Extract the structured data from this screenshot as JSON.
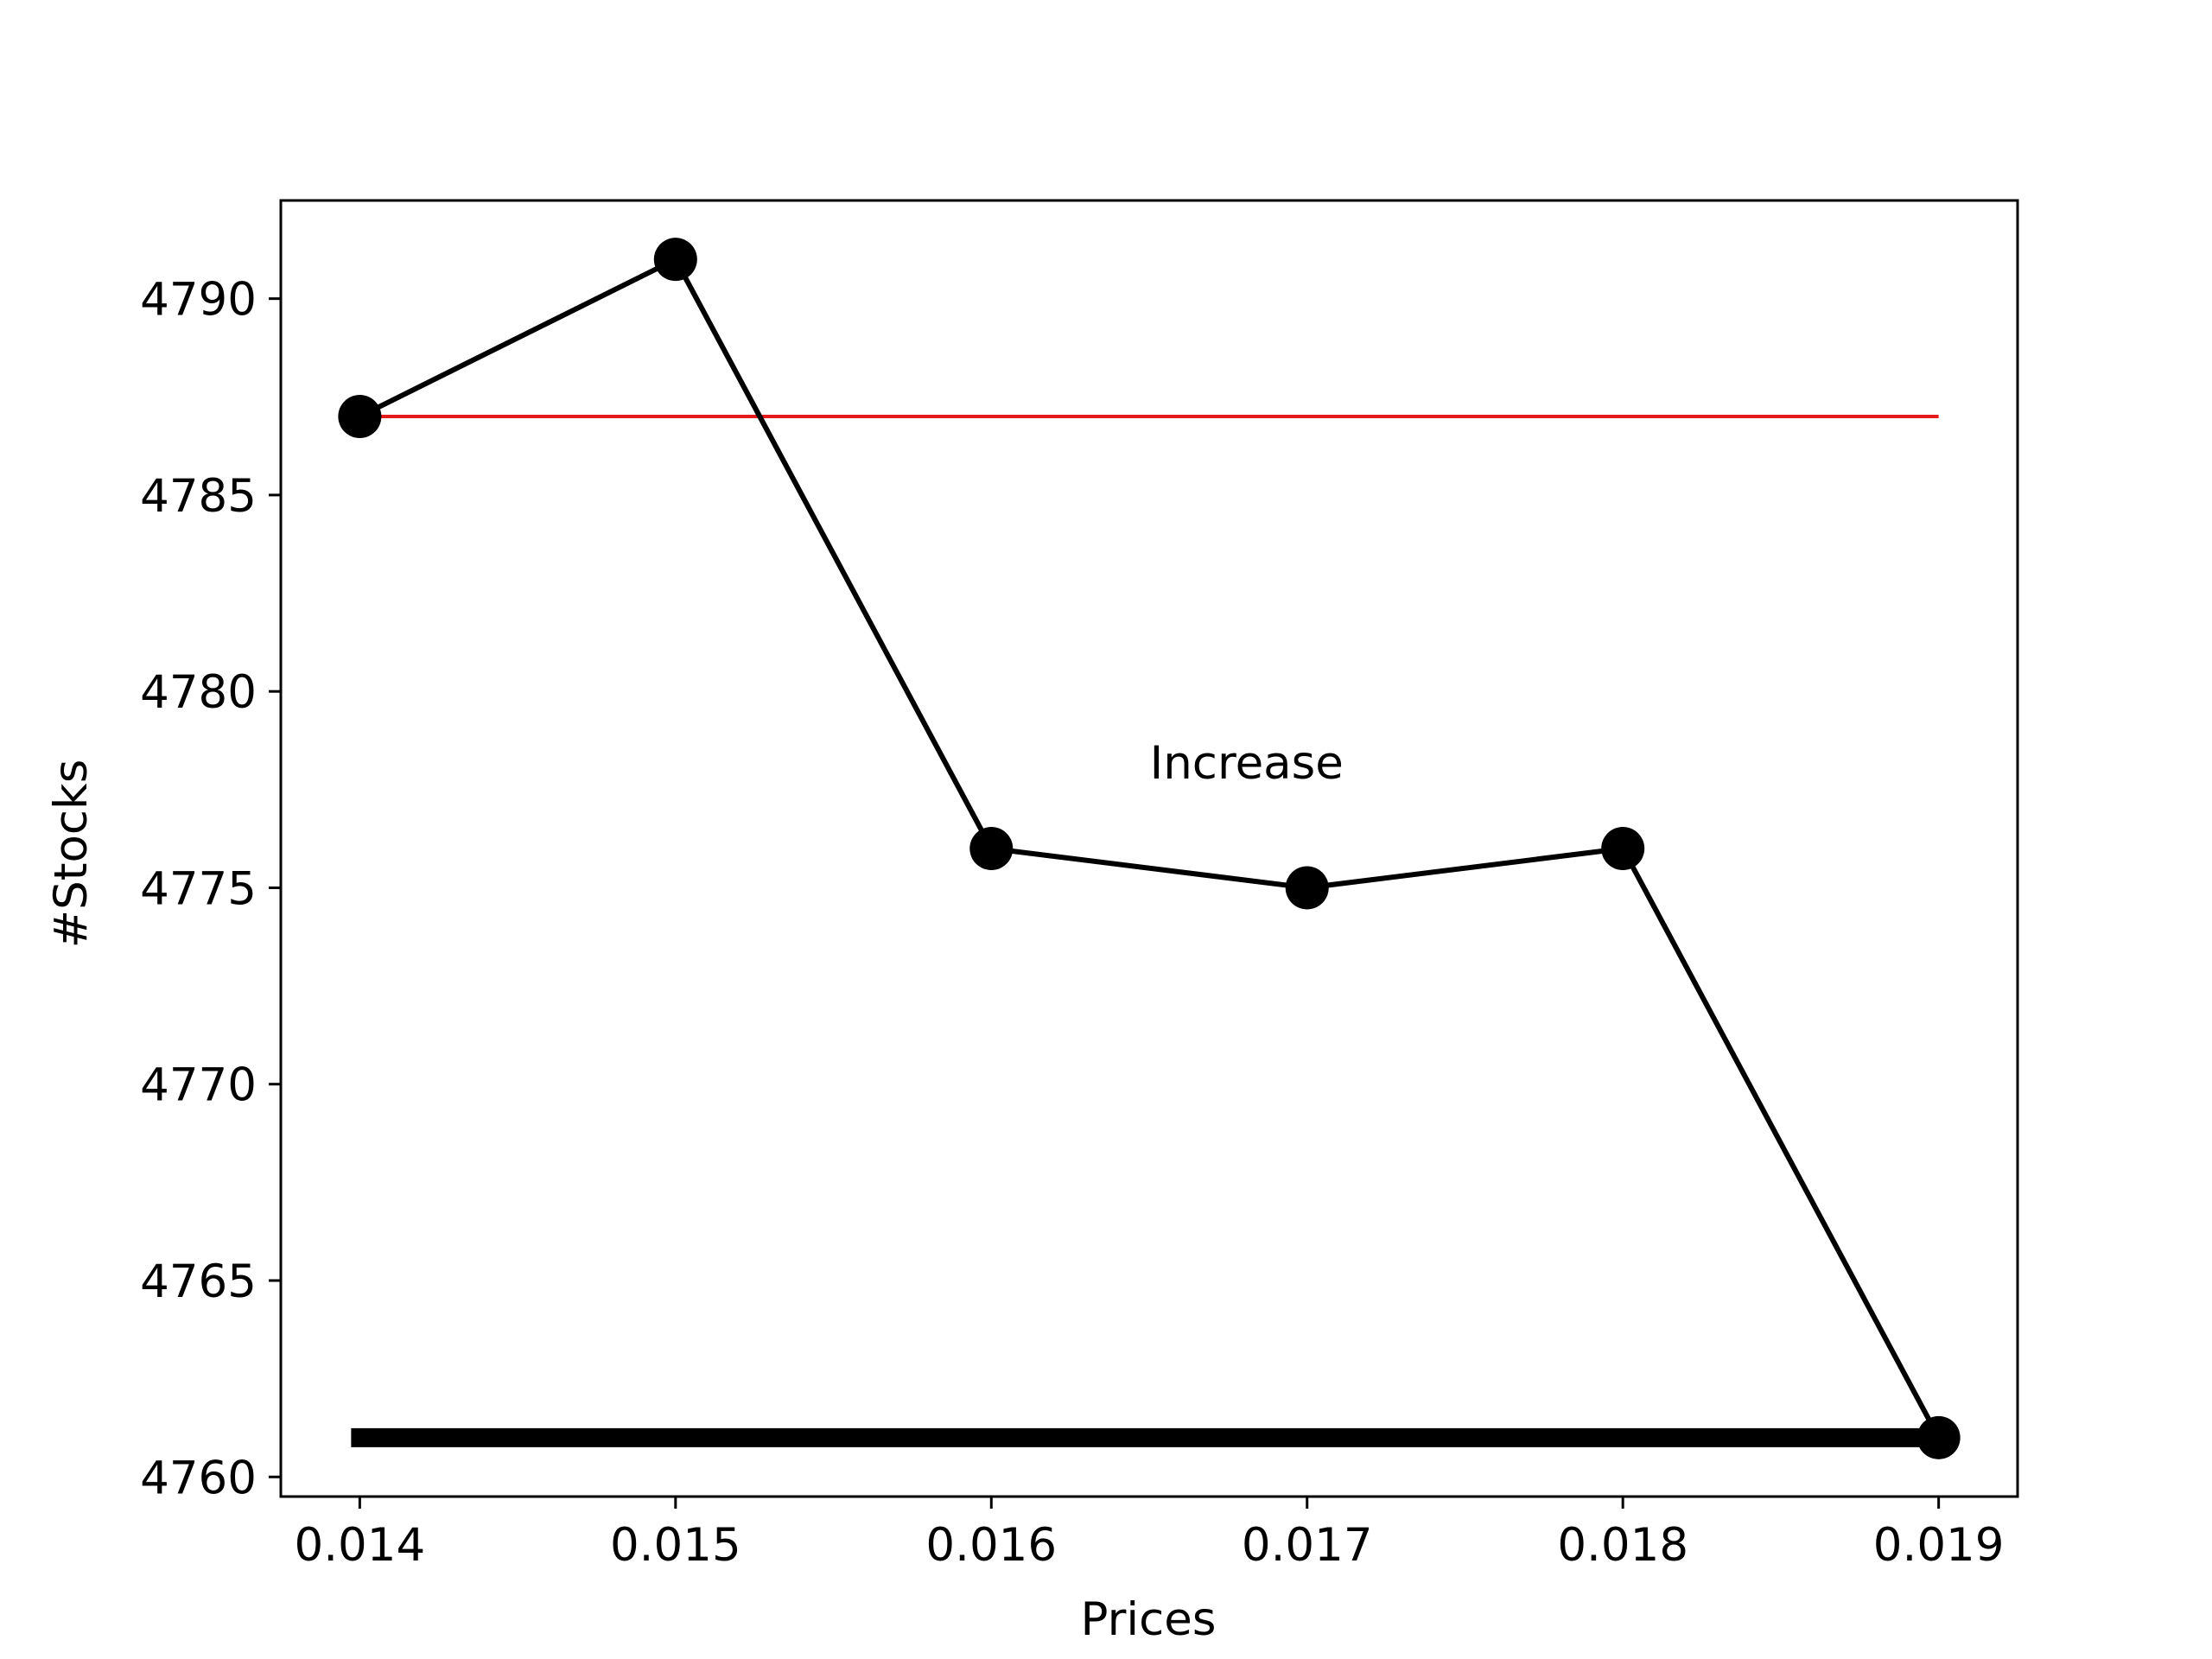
{
  "chart_data": {
    "type": "line",
    "title": "",
    "xlabel": "Prices",
    "ylabel": "#Stocks",
    "x": [
      0.014,
      0.015,
      0.016,
      0.017,
      0.018,
      0.019
    ],
    "x_tick_labels": [
      "0.014",
      "0.015",
      "0.016",
      "0.017",
      "0.018",
      "0.019"
    ],
    "y_ticks": [
      4760,
      4765,
      4770,
      4775,
      4780,
      4785,
      4790
    ],
    "y_tick_labels": [
      "4760",
      "4765",
      "4770",
      "4775",
      "4780",
      "4785",
      "4790"
    ],
    "xlim": [
      0.01375,
      0.01925
    ],
    "ylim": [
      4759.5,
      4792.5
    ],
    "grid": false,
    "series": [
      {
        "values": [
          4787,
          4791,
          4776,
          4775,
          4776,
          4761
        ],
        "color": "#000000",
        "marker": "circle"
      }
    ],
    "reference_lines": [
      {
        "y": 4787,
        "x_range": [
          0.014,
          0.019
        ],
        "color": "#e41a1c",
        "style": "thin"
      },
      {
        "y": 4761,
        "x_range": [
          0.014,
          0.019
        ],
        "color": "#000000",
        "style": "thick"
      }
    ],
    "annotations": [
      {
        "text": "Increase",
        "x": 0.017,
        "y": 4778
      }
    ]
  }
}
